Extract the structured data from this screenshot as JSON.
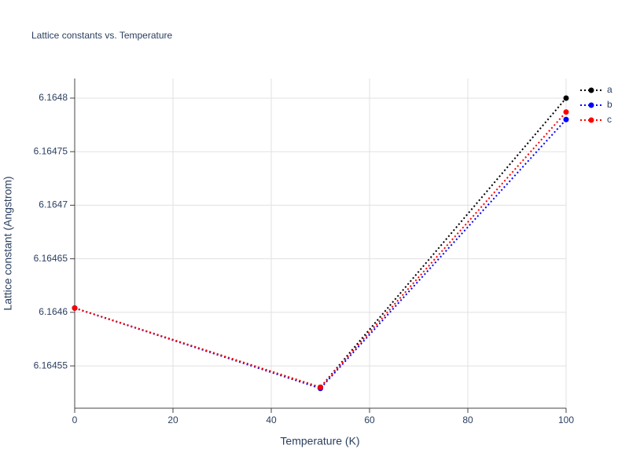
{
  "chart_data": {
    "type": "line",
    "title": "Lattice constants vs. Temperature",
    "x_label": "Temperature (K)",
    "y_label": "Lattice constant (Angstrom)",
    "x": [
      0,
      50,
      100
    ],
    "series": [
      {
        "name": "a",
        "color": "#000000",
        "values": [
          6.164604,
          6.16453,
          6.1648
        ]
      },
      {
        "name": "b",
        "color": "#0000ff",
        "values": [
          6.164604,
          6.164529,
          6.16478
        ]
      },
      {
        "name": "c",
        "color": "#ff0000",
        "values": [
          6.164604,
          6.16453,
          6.164787
        ]
      }
    ],
    "xlim": [
      0,
      100
    ],
    "xticks": [
      0,
      20,
      40,
      60,
      80,
      100
    ],
    "ylim": [
      6.1645105,
      6.1648183
    ],
    "yticks": [
      6.16455,
      6.1646,
      6.16465,
      6.1647,
      6.16475,
      6.1648
    ],
    "grid": true,
    "legend": "right"
  }
}
